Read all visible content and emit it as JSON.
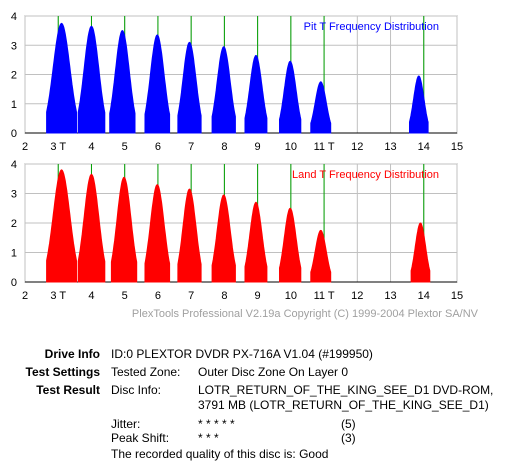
{
  "chart_data": [
    {
      "type": "area",
      "title": "Pit T Frequency Distribution",
      "color": "#0000ff",
      "xlim": [
        2,
        15
      ],
      "ylim": [
        0,
        4
      ],
      "xticks": [
        2,
        3,
        4,
        5,
        6,
        7,
        8,
        9,
        10,
        11,
        12,
        13,
        14,
        15
      ],
      "yticks": [
        0,
        1,
        2,
        3,
        4
      ],
      "xticklabels": [
        "2",
        "3 T",
        "4",
        "5",
        "6",
        "7",
        "8",
        "9",
        "10",
        "11 T",
        "12",
        "13",
        "14",
        "15"
      ],
      "grid": true,
      "markers": [
        3,
        4,
        5,
        6,
        7,
        8,
        9,
        10,
        11,
        14
      ],
      "peaks": [
        {
          "x": 3.1,
          "y": 3.75,
          "w": 0.45
        },
        {
          "x": 4.0,
          "y": 3.65,
          "w": 0.4
        },
        {
          "x": 4.93,
          "y": 3.5,
          "w": 0.38
        },
        {
          "x": 5.98,
          "y": 3.35,
          "w": 0.37
        },
        {
          "x": 6.95,
          "y": 3.1,
          "w": 0.35
        },
        {
          "x": 7.98,
          "y": 2.95,
          "w": 0.35
        },
        {
          "x": 8.95,
          "y": 2.65,
          "w": 0.33
        },
        {
          "x": 9.98,
          "y": 2.45,
          "w": 0.32
        },
        {
          "x": 10.9,
          "y": 1.75,
          "w": 0.3
        },
        {
          "x": 13.85,
          "y": 1.95,
          "w": 0.28
        }
      ]
    },
    {
      "type": "area",
      "title": "Land T Frequency Distribution",
      "color": "#ff0000",
      "xlim": [
        2,
        15
      ],
      "ylim": [
        0,
        4
      ],
      "xticks": [
        2,
        3,
        4,
        5,
        6,
        7,
        8,
        9,
        10,
        11,
        12,
        13,
        14,
        15
      ],
      "yticks": [
        0,
        1,
        2,
        3,
        4
      ],
      "xticklabels": [
        "2",
        "3 T",
        "4",
        "5",
        "6",
        "7",
        "8",
        "9",
        "10",
        "11 T",
        "12",
        "13",
        "14",
        "15"
      ],
      "grid": true,
      "markers": [
        3,
        4,
        5,
        6,
        7,
        8,
        9,
        10,
        11,
        14
      ],
      "peaks": [
        {
          "x": 3.1,
          "y": 3.8,
          "w": 0.45
        },
        {
          "x": 4.0,
          "y": 3.65,
          "w": 0.4
        },
        {
          "x": 4.98,
          "y": 3.55,
          "w": 0.38
        },
        {
          "x": 5.98,
          "y": 3.3,
          "w": 0.37
        },
        {
          "x": 6.95,
          "y": 3.15,
          "w": 0.35
        },
        {
          "x": 7.98,
          "y": 2.95,
          "w": 0.35
        },
        {
          "x": 8.95,
          "y": 2.7,
          "w": 0.33
        },
        {
          "x": 9.98,
          "y": 2.5,
          "w": 0.32
        },
        {
          "x": 10.9,
          "y": 1.75,
          "w": 0.3
        },
        {
          "x": 13.9,
          "y": 2.0,
          "w": 0.28
        }
      ]
    }
  ],
  "copyright": "PlexTools Professional V2.19a Copyright (C) 1999-2004 Plextor SA/NV",
  "info": {
    "drive_info_label": "Drive Info",
    "drive_info_value": "ID:0 PLEXTOR DVDR PX-716A V1.04 (#199950)",
    "test_settings_label": "Test Settings",
    "tested_zone_label": "Tested Zone:",
    "tested_zone_value": "Outer Disc Zone On Layer 0",
    "test_result_label": "Test Result",
    "disc_info_label": "Disc Info:",
    "disc_info_line1": "LOTR_RETURN_OF_THE_KING_SEE_D1 DVD-ROM,",
    "disc_info_line2": "3791 MB (LOTR_RETURN_OF_THE_KING_SEE_D1)",
    "jitter_label": "Jitter:",
    "jitter_stars": "* * * * *",
    "jitter_score": "(5)",
    "peak_shift_label": "Peak Shift:",
    "peak_shift_stars": "* * *",
    "peak_shift_score": "(3)",
    "quality_text": "The recorded quality of this disc is: Good"
  }
}
